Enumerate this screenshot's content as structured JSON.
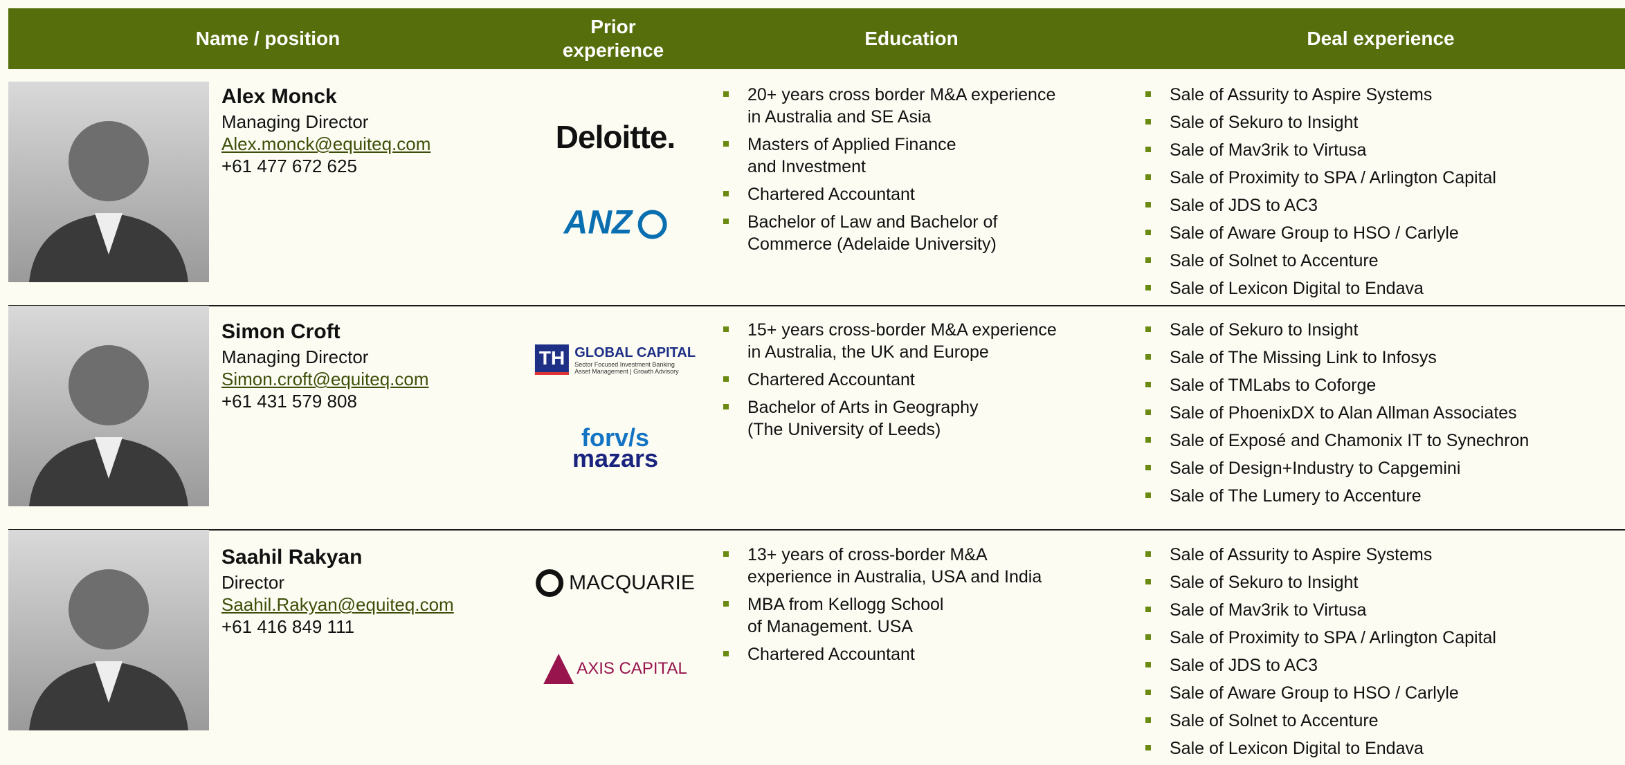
{
  "header": {
    "columns": [
      "Name / position",
      "Prior experience",
      "Education",
      "Deal experience"
    ]
  },
  "people": [
    {
      "name": "Alex Monck",
      "position": "Managing Director",
      "email": "Alex.monck@equiteq.com",
      "phone": "+61 477 672 625",
      "prior": [
        {
          "text": "Deloitte."
        },
        {
          "text": "ANZ"
        }
      ],
      "education": [
        "20+ years cross border M&A experience\nin Australia and SE Asia",
        "Masters of Applied Finance\nand Investment",
        "Chartered Accountant",
        "Bachelor of Law and Bachelor of\nCommerce (Adelaide University)"
      ],
      "deals": [
        "Sale of Assurity to Aspire Systems",
        "Sale of Sekuro to Insight",
        "Sale of Mav3rik to Virtusa",
        "Sale of Proximity to SPA / Arlington Capital",
        "Sale of JDS to AC3",
        "Sale of Aware Group to HSO / Carlyle",
        "Sale of Solnet to Accenture",
        "Sale of Lexicon Digital to Endava"
      ]
    },
    {
      "name": "Simon Croft",
      "position": "Managing Director",
      "email": "Simon.croft@equiteq.com",
      "phone": "+61 431 579 808",
      "prior": [
        {
          "badge": "TH",
          "text": "GLOBAL CAPITAL",
          "sub": [
            "Sector Focused Investment Banking",
            "Asset Management | Growth Advisory"
          ]
        },
        {
          "text": "forv/s",
          "sub": [
            "mazars"
          ]
        }
      ],
      "education": [
        "15+ years cross-border M&A experience\nin Australia, the UK and Europe",
        "Chartered Accountant",
        "Bachelor of Arts in Geography\n(The University of Leeds)"
      ],
      "deals": [
        "Sale of Sekuro to Insight",
        "Sale of The Missing Link to Infosys",
        "Sale of TMLabs to Coforge",
        "Sale of PhoenixDX to Alan Allman Associates",
        "Sale of Exposé and Chamonix IT to Synechron",
        "Sale of Design+Industry to Capgemini",
        "Sale of The Lumery to Accenture"
      ]
    },
    {
      "name": "Saahil Rakyan",
      "position": "Director",
      "email": "Saahil.Rakyan@equiteq.com",
      "phone": "+61 416 849 111",
      "prior": [
        {
          "text": "MACQUARIE"
        },
        {
          "text": "AXIS CAPITAL"
        }
      ],
      "education": [
        "13+ years of cross-border M&A\nexperience in Australia, USA and India",
        "MBA from Kellogg School\nof Management. USA",
        "Chartered Accountant"
      ],
      "deals": [
        "Sale of Assurity to Aspire Systems",
        "Sale of Sekuro to Insight",
        "Sale of Mav3rik to Virtusa",
        "Sale of Proximity to SPA / Arlington Capital",
        "Sale of JDS to AC3",
        "Sale of Aware Group to HSO / Carlyle",
        "Sale of Solnet to Accenture",
        "Sale of Lexicon Digital to Endava"
      ]
    }
  ]
}
